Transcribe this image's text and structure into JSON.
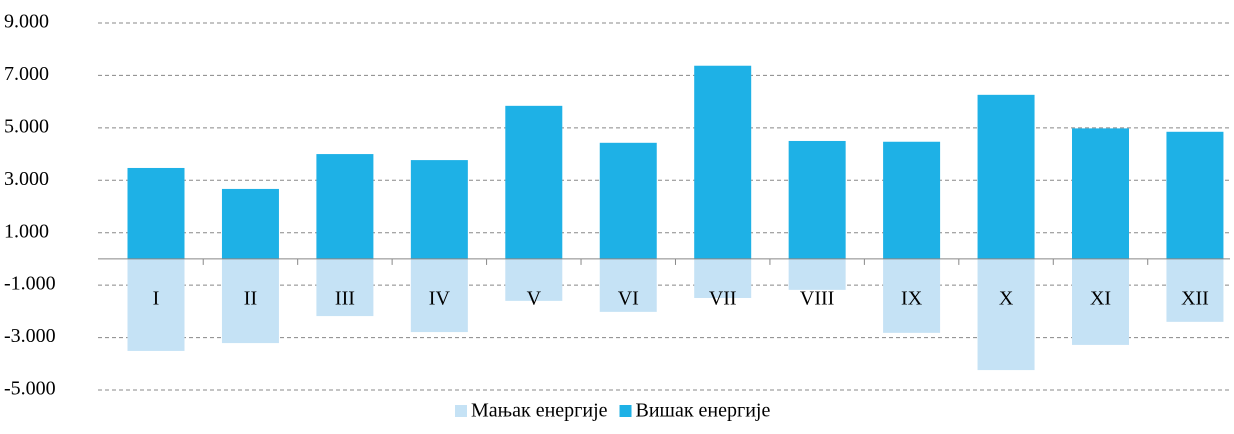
{
  "chart_data": {
    "type": "bar",
    "categories": [
      "I",
      "II",
      "III",
      "IV",
      "V",
      "VI",
      "VII",
      "VIII",
      "IX",
      "X",
      "XI",
      "XII"
    ],
    "series": [
      {
        "name": "Мањак енергије",
        "color": "#c5e2f5",
        "values": [
          -3510,
          -3210,
          -2180,
          -2790,
          -1600,
          -2020,
          -1490,
          -1180,
          -2820,
          -4240,
          -3280,
          -2400
        ]
      },
      {
        "name": "Вишак енергије",
        "color": "#1eb1e6",
        "values": [
          3470,
          2670,
          4000,
          3770,
          5840,
          4430,
          7370,
          4500,
          4470,
          6260,
          4980,
          4850
        ]
      }
    ],
    "ylim": [
      -5000,
      9000
    ],
    "yticks": [
      {
        "value": -5000,
        "label": "-5.000"
      },
      {
        "value": -3000,
        "label": "-3.000"
      },
      {
        "value": -1000,
        "label": "-1.000"
      },
      {
        "value": 1000,
        "label": "1.000"
      },
      {
        "value": 3000,
        "label": "3.000"
      },
      {
        "value": 5000,
        "label": "5.000"
      },
      {
        "value": 7000,
        "label": "7.000"
      },
      {
        "value": 9000,
        "label": "9.000"
      }
    ],
    "grid": true,
    "legend": "bottom"
  }
}
